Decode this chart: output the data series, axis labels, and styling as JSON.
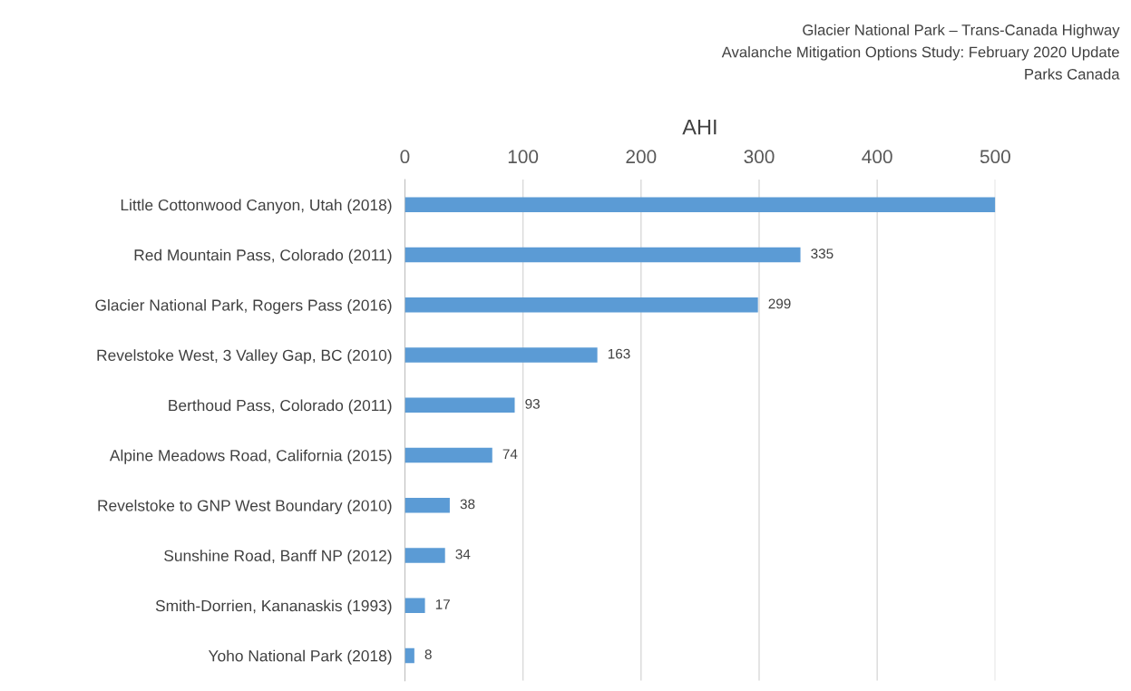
{
  "chart_data": {
    "type": "bar",
    "orientation": "horizontal",
    "xlabel": "AHI",
    "annotations": [
      "Glacier National Park – Trans-Canada Highway",
      "Avalanche Mitigation Options Study: February 2020 Update",
      "Parks Canada"
    ],
    "categories": [
      "Little Cottonwood Canyon, Utah (2018)",
      "Red Mountain Pass, Colorado (2011)",
      "Glacier National Park, Rogers Pass (2016)",
      "Revelstoke West, 3 Valley Gap, BC (2010)",
      "Berthoud Pass, Colorado (2011)",
      "Alpine Meadows Road, California (2015)",
      "Revelstoke to GNP West Boundary (2010)",
      "Sunshine Road, Banff NP (2012)",
      "Smith-Dorrien, Kananaskis (1993)",
      "Yoho National Park (2018)"
    ],
    "values": [
      500,
      335,
      299,
      163,
      93,
      74,
      38,
      34,
      17,
      8
    ],
    "value_labels": [
      null,
      "335",
      "299",
      "163",
      "93",
      "74",
      "38",
      "34",
      "17",
      "8"
    ],
    "color": "#5b9bd5",
    "xlim": [
      0,
      500
    ],
    "xticks": [
      0,
      100,
      200,
      300,
      400,
      500
    ],
    "grid": "x",
    "legend": false
  }
}
